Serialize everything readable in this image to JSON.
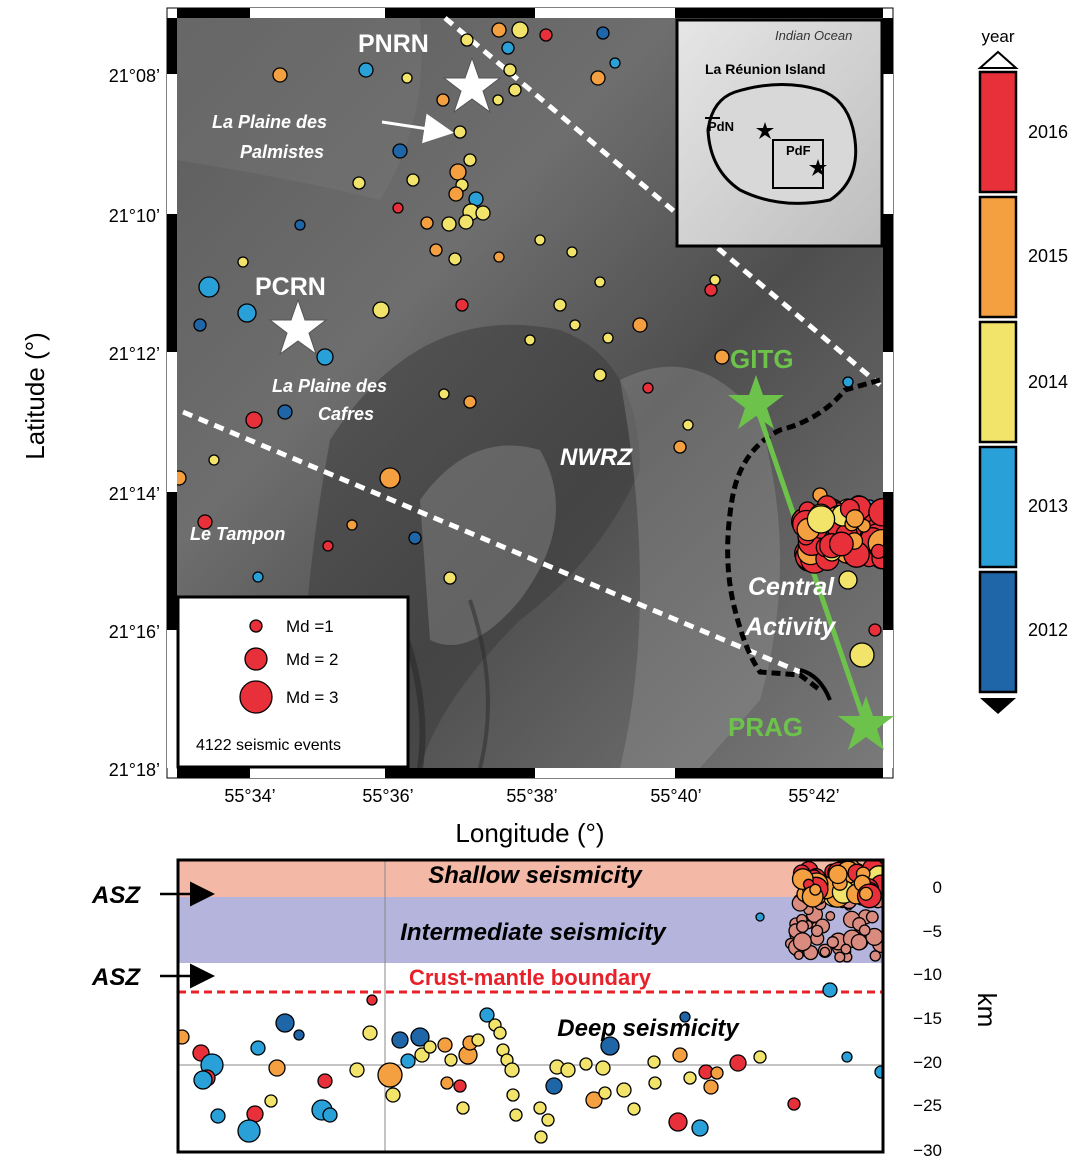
{
  "map": {
    "y_axis_label": "Latitude (°)",
    "x_axis_label": "Longitude (°)",
    "lat_ticks": [
      "21°08’",
      "21°10’",
      "21°12’",
      "21°14’",
      "21°16’",
      "21°18’"
    ],
    "lon_ticks": [
      "55°34’",
      "55°36’",
      "55°38’",
      "55°40’",
      "55°42’"
    ],
    "labels": {
      "pnrn": "PNRN",
      "pcrn": "PCRN",
      "plaine_palmistes_1": "La Plaine des",
      "plaine_palmistes_2": "Palmistes",
      "plaine_cafres_1": "La Plaine des",
      "plaine_cafres_2": "Cafres",
      "nwrz": "NWRZ",
      "le_tampon": "Le Tampon",
      "central_1": "Central",
      "central_2": "Activity",
      "gitg": "GITG",
      "prag": "PRAG"
    },
    "legend": {
      "md1": "Md =1",
      "md2": "Md = 2",
      "md3": "Md = 3",
      "count": "4122  seismic events"
    },
    "inset": {
      "ocean": "Indian Ocean",
      "island": "La Réunion Island",
      "pdn": "PdN",
      "pdf": "PdF"
    }
  },
  "colorbar": {
    "title": "year",
    "years": [
      "2016",
      "2015",
      "2014",
      "2013",
      "2012"
    ],
    "colors": [
      "#e8303a",
      "#f5a040",
      "#f2e46a",
      "#2aa0d8",
      "#1f66a8"
    ]
  },
  "section": {
    "shallow": "Shallow seismicity",
    "intermediate": "Intermediate seismicity",
    "crust_mantle": "Crust-mantle boundary",
    "deep": "Deep seismicity",
    "asz1": "ASZ",
    "asz2": "ASZ",
    "depth_unit": "km",
    "depth_ticks": [
      "0",
      "−5",
      "−10",
      "−15",
      "−20",
      "−25",
      "−30"
    ]
  },
  "colors": {
    "green_profile": "#6cc24a",
    "crust_boundary": "#e8202a",
    "shallow_band": "#f4b8a6",
    "intermediate_band": "#b4b4dc"
  }
}
